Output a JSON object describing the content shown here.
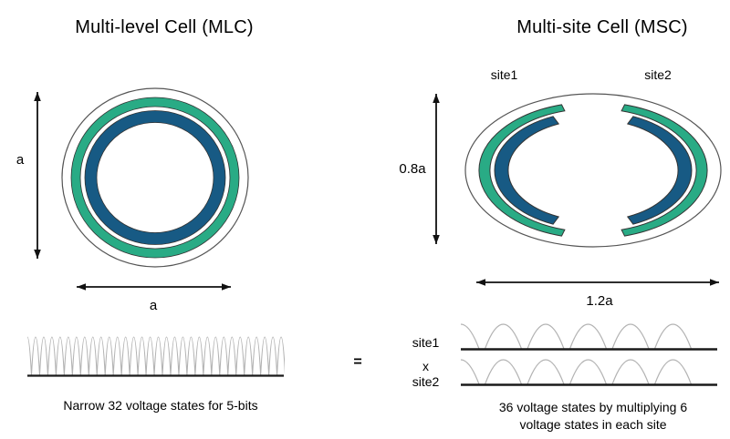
{
  "left_panel": {
    "title": "Multi-level Cell (MLC)",
    "height_arrow_label": "a",
    "width_arrow_label": "a",
    "caption": "Narrow 32 voltage states for 5-bits",
    "wave_peak_count": 32
  },
  "right_panel": {
    "title": "Multi-site Cell (MSC)",
    "site1_label": "site1",
    "site2_label": "site2",
    "height_arrow_label": "0.8a",
    "width_arrow_label": "1.2a",
    "wave_row1_label": "site1",
    "wave_operator_label": "x",
    "wave_row2_label": "site2",
    "caption_line1": "36 voltage states by multiplying 6",
    "caption_line2": "voltage states in each site",
    "wave_peaks_per_site": 6
  },
  "equals_label": "=",
  "colors": {
    "ring_green": "#29AB85",
    "ring_blue": "#175A84",
    "outline_dark": "#333333",
    "ellipse_outline": "#555555",
    "arrow_black": "#111111",
    "wave_hump_gray": "#b3b3b3",
    "wave_baseline": "#1a1a1a",
    "text": "#000000"
  }
}
